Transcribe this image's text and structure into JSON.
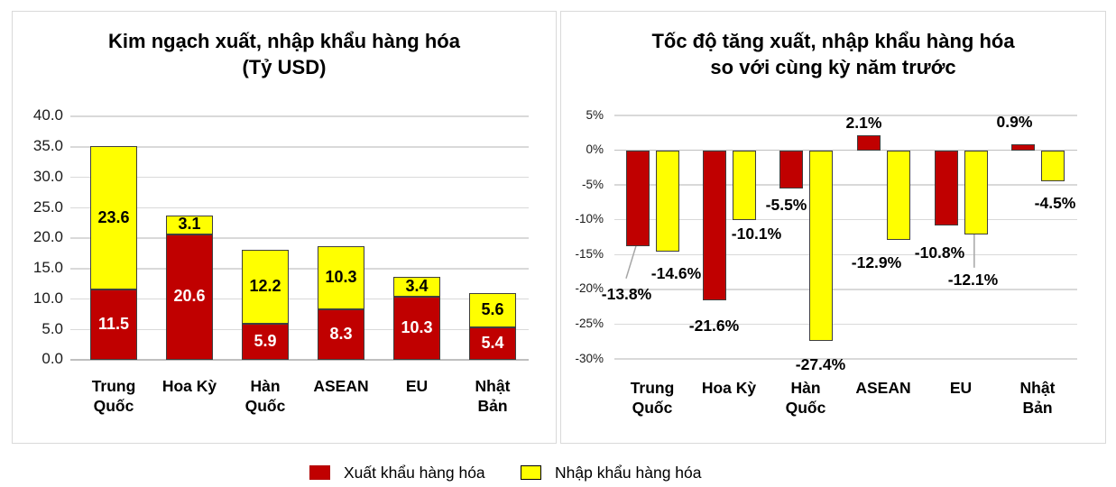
{
  "colors": {
    "export_red": "#C00000",
    "import_yellow": "#FFFF00",
    "gridline": "#D9D9D9",
    "zero_line": "#BFBFBF",
    "bar_border": "#3F3F3F",
    "panel_border": "#D9D9D9",
    "leader_line": "#A6A6A6",
    "label_on_red": "#FFFFFF",
    "label_on_yellow": "#000000"
  },
  "legend": {
    "items": [
      {
        "label": "Xuất khẩu hàng hóa",
        "color": "#C00000"
      },
      {
        "label": "Nhập khẩu hàng hóa",
        "color": "#FFFF00"
      }
    ]
  },
  "chart_data": [
    {
      "id": "trade-turnover",
      "type": "bar",
      "subtype": "stacked",
      "title": "Kim ngạch xuất, nhập khẩu hàng hóa",
      "subtitle": "(Tỷ USD)",
      "categories": [
        "Trung Quốc",
        "Hoa Kỳ",
        "Hàn Quốc",
        "ASEAN",
        "EU",
        "Nhật Bản"
      ],
      "series": [
        {
          "name": "Xuất khẩu hàng hóa",
          "color": "#C00000",
          "values": [
            11.5,
            20.6,
            5.9,
            8.3,
            10.3,
            5.4
          ],
          "labels": [
            "11.5",
            "20.6",
            "5.9",
            "8.3",
            "10.3",
            "5.4"
          ]
        },
        {
          "name": "Nhập khẩu hàng hóa",
          "color": "#FFFF00",
          "values": [
            23.6,
            3.1,
            12.2,
            10.3,
            3.4,
            5.6
          ],
          "labels": [
            "23.6",
            "3.1",
            "12.2",
            "10.3",
            "3.4",
            "5.6"
          ]
        }
      ],
      "y_axis": {
        "min": 0,
        "max": 40,
        "step": 5,
        "ticks": [
          "40.0",
          "35.0",
          "30.0",
          "25.0",
          "20.0",
          "15.0",
          "10.0",
          "5.0",
          "0.0"
        ]
      },
      "grid": true,
      "legend_position": "bottom-shared"
    },
    {
      "id": "growth-rate",
      "type": "bar",
      "subtype": "grouped",
      "title": "Tốc độ tăng xuất, nhập khẩu hàng hóa",
      "subtitle": "so với cùng kỳ năm trước",
      "categories": [
        "Trung Quốc",
        "Hoa Kỳ",
        "Hàn Quốc",
        "ASEAN",
        "EU",
        "Nhật Bản"
      ],
      "series": [
        {
          "name": "Xuất khẩu hàng hóa",
          "color": "#C00000",
          "values": [
            -13.8,
            -21.6,
            -5.5,
            2.1,
            -10.8,
            0.9
          ],
          "labels": [
            "-13.8%",
            "-21.6%",
            "-5.5%",
            "2.1%",
            "-10.8%",
            "0.9%"
          ]
        },
        {
          "name": "Nhập khẩu hàng hóa",
          "color": "#FFFF00",
          "values": [
            -14.6,
            -10.1,
            -27.4,
            -12.9,
            -12.1,
            -4.5
          ],
          "labels": [
            "-14.6%",
            "-10.1%",
            "-27.4%",
            "-12.9%",
            "-12.1%",
            "-4.5%"
          ]
        }
      ],
      "y_axis": {
        "min": -30,
        "max": 5,
        "step": 5,
        "ticks": [
          "5%",
          "0%",
          "-5%",
          "-10%",
          "-15%",
          "-20%",
          "-25%",
          "-30%"
        ]
      },
      "grid": true,
      "legend_position": "bottom-shared"
    }
  ]
}
